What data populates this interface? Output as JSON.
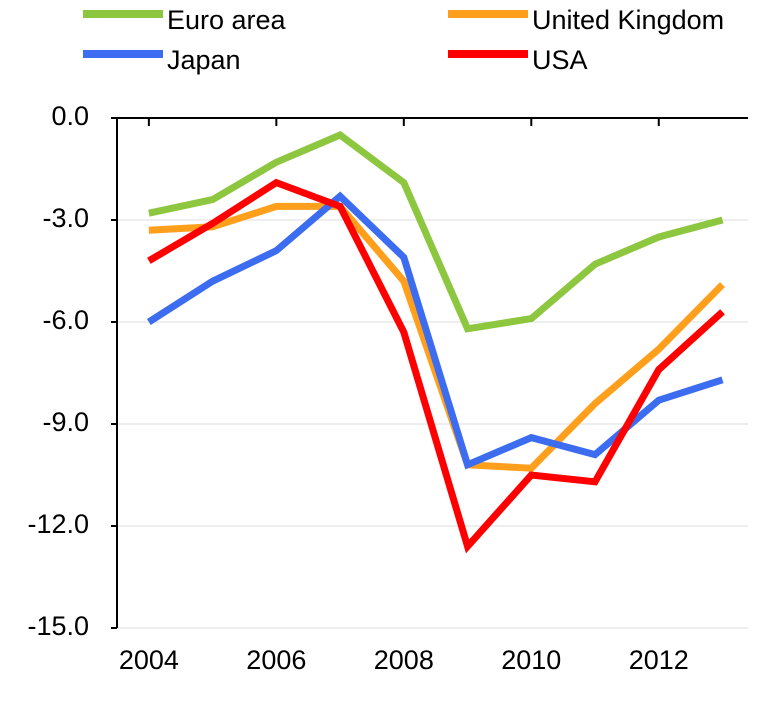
{
  "chart_data": {
    "type": "line",
    "x": [
      2004,
      2005,
      2006,
      2007,
      2008,
      2009,
      2010,
      2011,
      2012,
      2013
    ],
    "series": [
      {
        "name": "Euro area",
        "color": "#8dc63f",
        "values": [
          -2.8,
          -2.4,
          -1.3,
          -0.5,
          -1.9,
          -6.2,
          -5.9,
          -4.3,
          -3.5,
          -3.0
        ]
      },
      {
        "name": "United Kingdom",
        "color": "#ff9f1c",
        "values": [
          -3.3,
          -3.2,
          -2.6,
          -2.6,
          -4.8,
          -10.2,
          -10.3,
          -8.4,
          -6.8,
          -4.9
        ]
      },
      {
        "name": "Japan",
        "color": "#3c6cf0",
        "values": [
          -6.0,
          -4.8,
          -3.9,
          -2.3,
          -4.1,
          -10.2,
          -9.4,
          -9.9,
          -8.3,
          -7.7
        ]
      },
      {
        "name": "USA",
        "color": "#ff0000",
        "values": [
          -4.2,
          -3.1,
          -1.9,
          -2.6,
          -6.3,
          -12.6,
          -10.5,
          -10.7,
          -7.4,
          -5.7
        ]
      }
    ],
    "xlim": [
      2003.5,
      2013.4
    ],
    "xticks": [
      2004,
      2006,
      2008,
      2010,
      2012
    ],
    "ylim": [
      -15,
      0
    ],
    "yticks": [
      {
        "value": 0,
        "label": "0.0"
      },
      {
        "value": -3,
        "label": "-3.0"
      },
      {
        "value": -6,
        "label": "-6.0"
      },
      {
        "value": -9,
        "label": "-9.0"
      },
      {
        "value": -12,
        "label": "-12.0"
      },
      {
        "value": -15,
        "label": "-15.0"
      }
    ],
    "grid": true
  }
}
